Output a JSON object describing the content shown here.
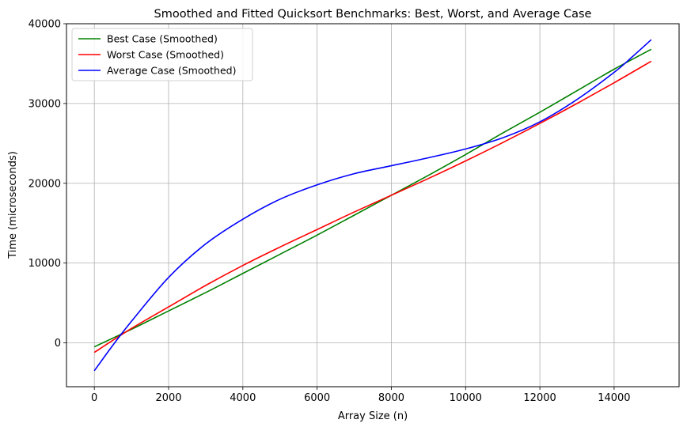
{
  "chart_data": {
    "type": "line",
    "title": "Smoothed and Fitted Quicksort Benchmarks: Best, Worst, and Average Case",
    "xlabel": "Array Size (n)",
    "ylabel": "Time (microseconds)",
    "xlim": [
      -750,
      15750
    ],
    "ylim": [
      -5500,
      40000
    ],
    "xticks": [
      0,
      2000,
      4000,
      6000,
      8000,
      10000,
      12000,
      14000
    ],
    "yticks": [
      0,
      10000,
      20000,
      30000,
      40000
    ],
    "grid": true,
    "legend_position": "upper-left",
    "series": [
      {
        "name": "Best Case (Smoothed)",
        "color": "#008000",
        "x": [
          0,
          1000,
          2000,
          3000,
          4000,
          5000,
          6000,
          7000,
          8000,
          9000,
          10000,
          11000,
          12000,
          13000,
          14000,
          15000
        ],
        "y": [
          -500,
          1700,
          4000,
          6300,
          8700,
          11100,
          13500,
          16000,
          18500,
          21000,
          23600,
          26300,
          28900,
          31600,
          34300,
          36800
        ]
      },
      {
        "name": "Worst Case (Smoothed)",
        "color": "#ff0000",
        "x": [
          0,
          1000,
          2000,
          3000,
          4000,
          5000,
          6000,
          7000,
          8000,
          9000,
          10000,
          11000,
          12000,
          13000,
          14000,
          15000
        ],
        "y": [
          -1200,
          1800,
          4500,
          7200,
          9700,
          12000,
          14200,
          16400,
          18500,
          20600,
          22800,
          25100,
          27500,
          30000,
          32600,
          35300
        ]
      },
      {
        "name": "Average Case (Smoothed)",
        "color": "#0000ff",
        "x": [
          0,
          500,
          1000,
          2000,
          3000,
          4000,
          5000,
          6000,
          7000,
          8000,
          9000,
          10000,
          11000,
          12000,
          13000,
          14000,
          14500,
          15000
        ],
        "y": [
          -3500,
          -300,
          2700,
          8200,
          12400,
          15500,
          18000,
          19800,
          21200,
          22200,
          23200,
          24300,
          25700,
          27700,
          30500,
          33900,
          35900,
          38000
        ]
      }
    ]
  }
}
